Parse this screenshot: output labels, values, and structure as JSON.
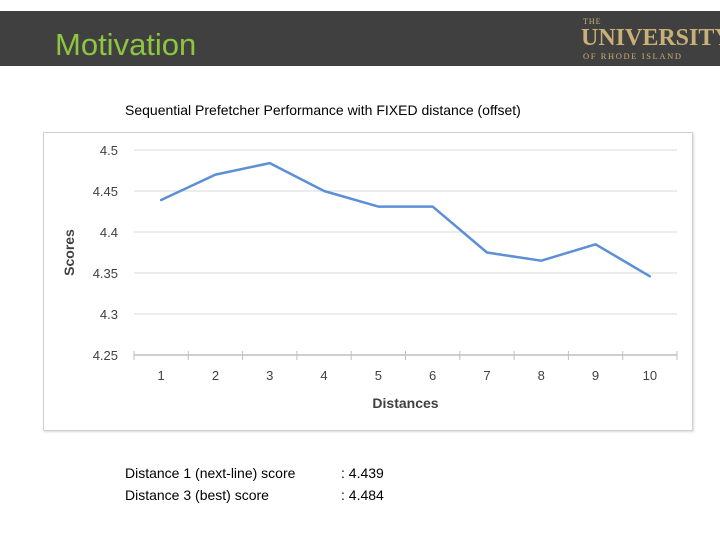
{
  "slide": {
    "title": "Motivation",
    "logo": {
      "the": "THE",
      "main": "UNIVERSITY",
      "sub": "OF RHODE ISLAND"
    }
  },
  "colors": {
    "header_bg": "#404040",
    "title": "#8dc63f",
    "logo": "#c9b076",
    "series": "#5b8fd6",
    "grid": "#d9d9d9"
  },
  "chart_data": {
    "type": "line",
    "title": "Sequential Prefetcher Performance with FIXED distance (offset)",
    "xlabel": "Distances",
    "ylabel": "Scores",
    "categories": [
      "1",
      "2",
      "3",
      "4",
      "5",
      "6",
      "7",
      "8",
      "9",
      "10"
    ],
    "series": [
      {
        "name": "Score",
        "values": [
          4.439,
          4.47,
          4.484,
          4.45,
          4.431,
          4.431,
          4.375,
          4.365,
          4.385,
          4.346
        ]
      }
    ],
    "ylim": [
      4.25,
      4.5
    ],
    "yticks": [
      "4.5",
      "4.45",
      "4.4",
      "4.35",
      "4.3",
      "4.25"
    ],
    "yticks_values": [
      4.5,
      4.45,
      4.4,
      4.35,
      4.3,
      4.25
    ],
    "grid": true,
    "legend": "none"
  },
  "stats": [
    {
      "label": "Distance 1 (next-line) score",
      "value": ": 4.439"
    },
    {
      "label": "Distance 3 (best) score",
      "value": ": 4.484"
    }
  ]
}
